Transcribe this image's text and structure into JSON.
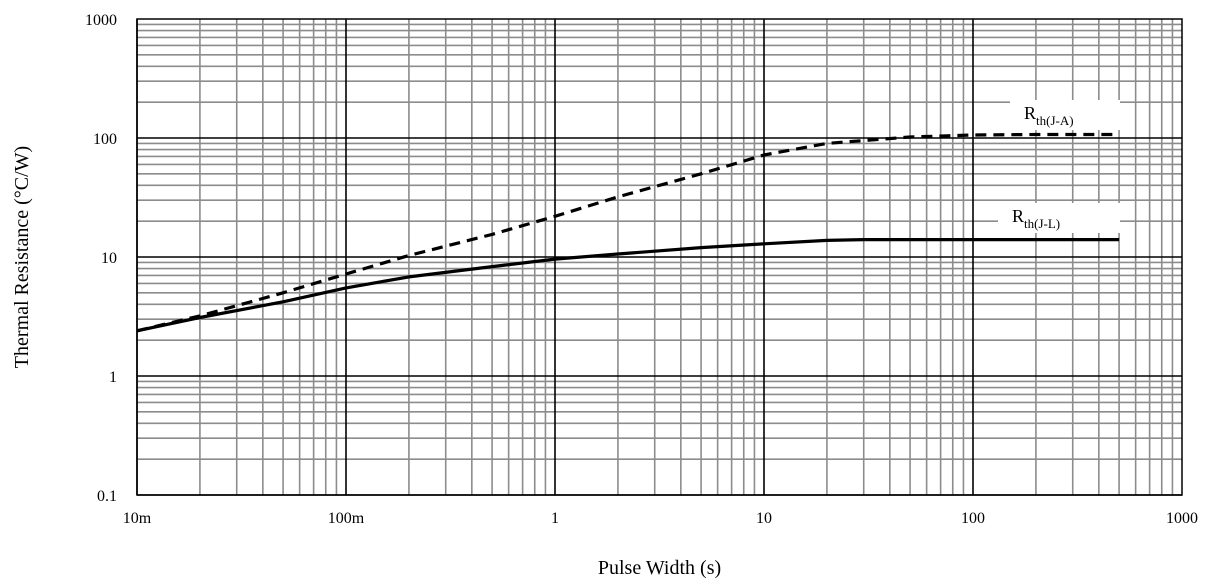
{
  "chart_data": {
    "type": "line",
    "xscale": "log",
    "yscale": "log",
    "xlim": [
      0.01,
      1000
    ],
    "ylim": [
      0.1,
      1000
    ],
    "grid": true,
    "xlabel": "Pulse Width (s)",
    "ylabel": "Thermal Resistance (°C/W)",
    "xticks": [
      {
        "value": 0.01,
        "label": "10m"
      },
      {
        "value": 0.1,
        "label": "100m"
      },
      {
        "value": 1,
        "label": "1"
      },
      {
        "value": 10,
        "label": "10"
      },
      {
        "value": 100,
        "label": "100"
      },
      {
        "value": 1000,
        "label": "1000"
      }
    ],
    "yticks": [
      {
        "value": 0.1,
        "label": "0.1"
      },
      {
        "value": 1,
        "label": "1"
      },
      {
        "value": 10,
        "label": "10"
      },
      {
        "value": 100,
        "label": "100"
      },
      {
        "value": 1000,
        "label": "1000"
      }
    ],
    "series": [
      {
        "label_main": "R",
        "label_sub": "th(J-A)",
        "style": "dashed",
        "color": "#000000",
        "points": [
          [
            0.01,
            2.4
          ],
          [
            0.02,
            3.2
          ],
          [
            0.05,
            5.0
          ],
          [
            0.1,
            7.2
          ],
          [
            0.2,
            10.3
          ],
          [
            0.5,
            15.5
          ],
          [
            1,
            22
          ],
          [
            2,
            32
          ],
          [
            5,
            50
          ],
          [
            10,
            72
          ],
          [
            20,
            90
          ],
          [
            50,
            102
          ],
          [
            100,
            106
          ],
          [
            200,
            107
          ],
          [
            500,
            107
          ]
        ]
      },
      {
        "label_main": "R",
        "label_sub": "th(J-L)",
        "style": "solid",
        "color": "#000000",
        "points": [
          [
            0.01,
            2.4
          ],
          [
            0.02,
            3.1
          ],
          [
            0.05,
            4.2
          ],
          [
            0.1,
            5.5
          ],
          [
            0.2,
            6.8
          ],
          [
            0.5,
            8.3
          ],
          [
            1,
            9.6
          ],
          [
            2,
            10.6
          ],
          [
            5,
            12.0
          ],
          [
            10,
            12.9
          ],
          [
            20,
            13.8
          ],
          [
            30,
            14.0
          ],
          [
            100,
            14.0
          ],
          [
            500,
            14.0
          ]
        ]
      }
    ]
  }
}
